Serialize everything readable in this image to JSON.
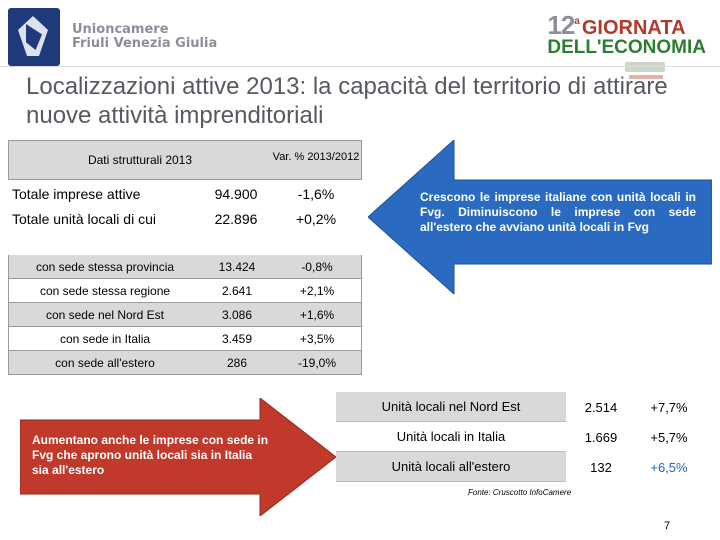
{
  "header": {
    "org_line1": "Unioncamere",
    "org_line2": "Friuli Venezia Giulia",
    "event_number": "12",
    "event_sup": "a",
    "event_word1": "GIORNATA",
    "event_word2": "DELL'ECONOMIA",
    "colors": {
      "crest": "#1e3a7a",
      "event_red": "#b03a2e",
      "event_green": "#2f7d32"
    }
  },
  "slide": {
    "title": "Localizzazioni attive 2013: la capacità del territorio di attirare nuove attività imprenditoriali",
    "page_number": "7"
  },
  "left_table": {
    "header_col1": "Dati strutturali 2013",
    "header_col2": "Var. % 2013/2012",
    "rows": [
      {
        "label": "Totale imprese attive",
        "value": "94.900",
        "var": "-1,6%"
      },
      {
        "label": "Totale unità locali di cui",
        "value": "22.896",
        "var": "+0,2%"
      },
      {
        "label": "con sede stessa provincia",
        "value": "13.424",
        "var": "-0,8%"
      },
      {
        "label": "con sede stessa regione",
        "value": "2.641",
        "var": "+2,1%"
      },
      {
        "label": "con sede nel Nord Est",
        "value": "3.086",
        "var": "+1,6%"
      },
      {
        "label": "con sede in Italia",
        "value": "3.459",
        "var": "+3,5%"
      },
      {
        "label": "con sede all'estero",
        "value": "286",
        "var": "-19,0%"
      }
    ]
  },
  "callouts": {
    "left_arrow_text": "Crescono le imprese italiane con unità locali in Fvg. Diminuiscono le imprese con sede all'estero che avviano unità locali in Fvg",
    "right_arrow_text": "Aumentano anche le imprese con sede in Fvg che aprono unità locali sia in Italia sia all'estero",
    "arrow_color": "#2a6bc1",
    "arrow2_color": "#c0392b"
  },
  "right_table": {
    "rows": [
      {
        "label": "Unità locali nel Nord Est",
        "value": "2.514",
        "var": "+7,7%"
      },
      {
        "label": "Unità locali in Italia",
        "value": "1.669",
        "var": "+5,7%"
      },
      {
        "label": "Unità locali all'estero",
        "value": "132",
        "var": "+6,5%"
      }
    ],
    "source": "Fonte: Cruscotto InfoCamere"
  }
}
